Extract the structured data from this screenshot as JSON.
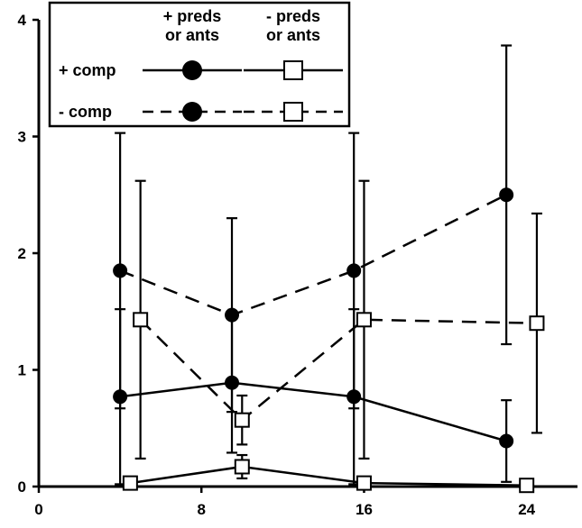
{
  "chart_data": {
    "type": "line",
    "title": "",
    "xlabel": "",
    "ylabel": "",
    "xlim": [
      0,
      26.5
    ],
    "ylim": [
      0,
      4
    ],
    "x_ticks": [
      0,
      8,
      16,
      24
    ],
    "y_ticks": [
      0,
      1,
      2,
      3,
      4
    ],
    "grid": false,
    "legend": {
      "position": "top-left",
      "column_headers": [
        "+ preds\nor ants",
        "- preds\nor ants"
      ],
      "row_labels": [
        "+ comp",
        "- comp"
      ]
    },
    "series": [
      {
        "name": "+ comp, + preds or ants",
        "marker": "filled-circle",
        "line": "solid",
        "x": [
          4,
          9.5,
          15.5,
          23
        ],
        "y": [
          0.77,
          0.89,
          0.77,
          0.39
        ],
        "err": [
          0.75,
          0.6,
          0.75,
          0.35
        ]
      },
      {
        "name": "+ comp, - preds or ants",
        "marker": "open-square",
        "line": "solid",
        "x": [
          4.5,
          10,
          16,
          24
        ],
        "y": [
          0.03,
          0.17,
          0.03,
          0.01
        ],
        "err": [
          0,
          0.1,
          0,
          0
        ]
      },
      {
        "name": "- comp, + preds or ants",
        "marker": "filled-circle",
        "line": "dashed",
        "x": [
          4,
          9.5,
          15.5,
          23
        ],
        "y": [
          1.85,
          1.47,
          1.85,
          2.5
        ],
        "err": [
          1.18,
          0.83,
          1.18,
          1.28
        ]
      },
      {
        "name": "- comp, - preds or ants",
        "marker": "open-square",
        "line": "dashed",
        "x": [
          5,
          10,
          16,
          24.5
        ],
        "y": [
          1.43,
          0.57,
          1.43,
          1.4
        ],
        "err": [
          1.19,
          0.21,
          1.19,
          0.94
        ]
      }
    ]
  }
}
